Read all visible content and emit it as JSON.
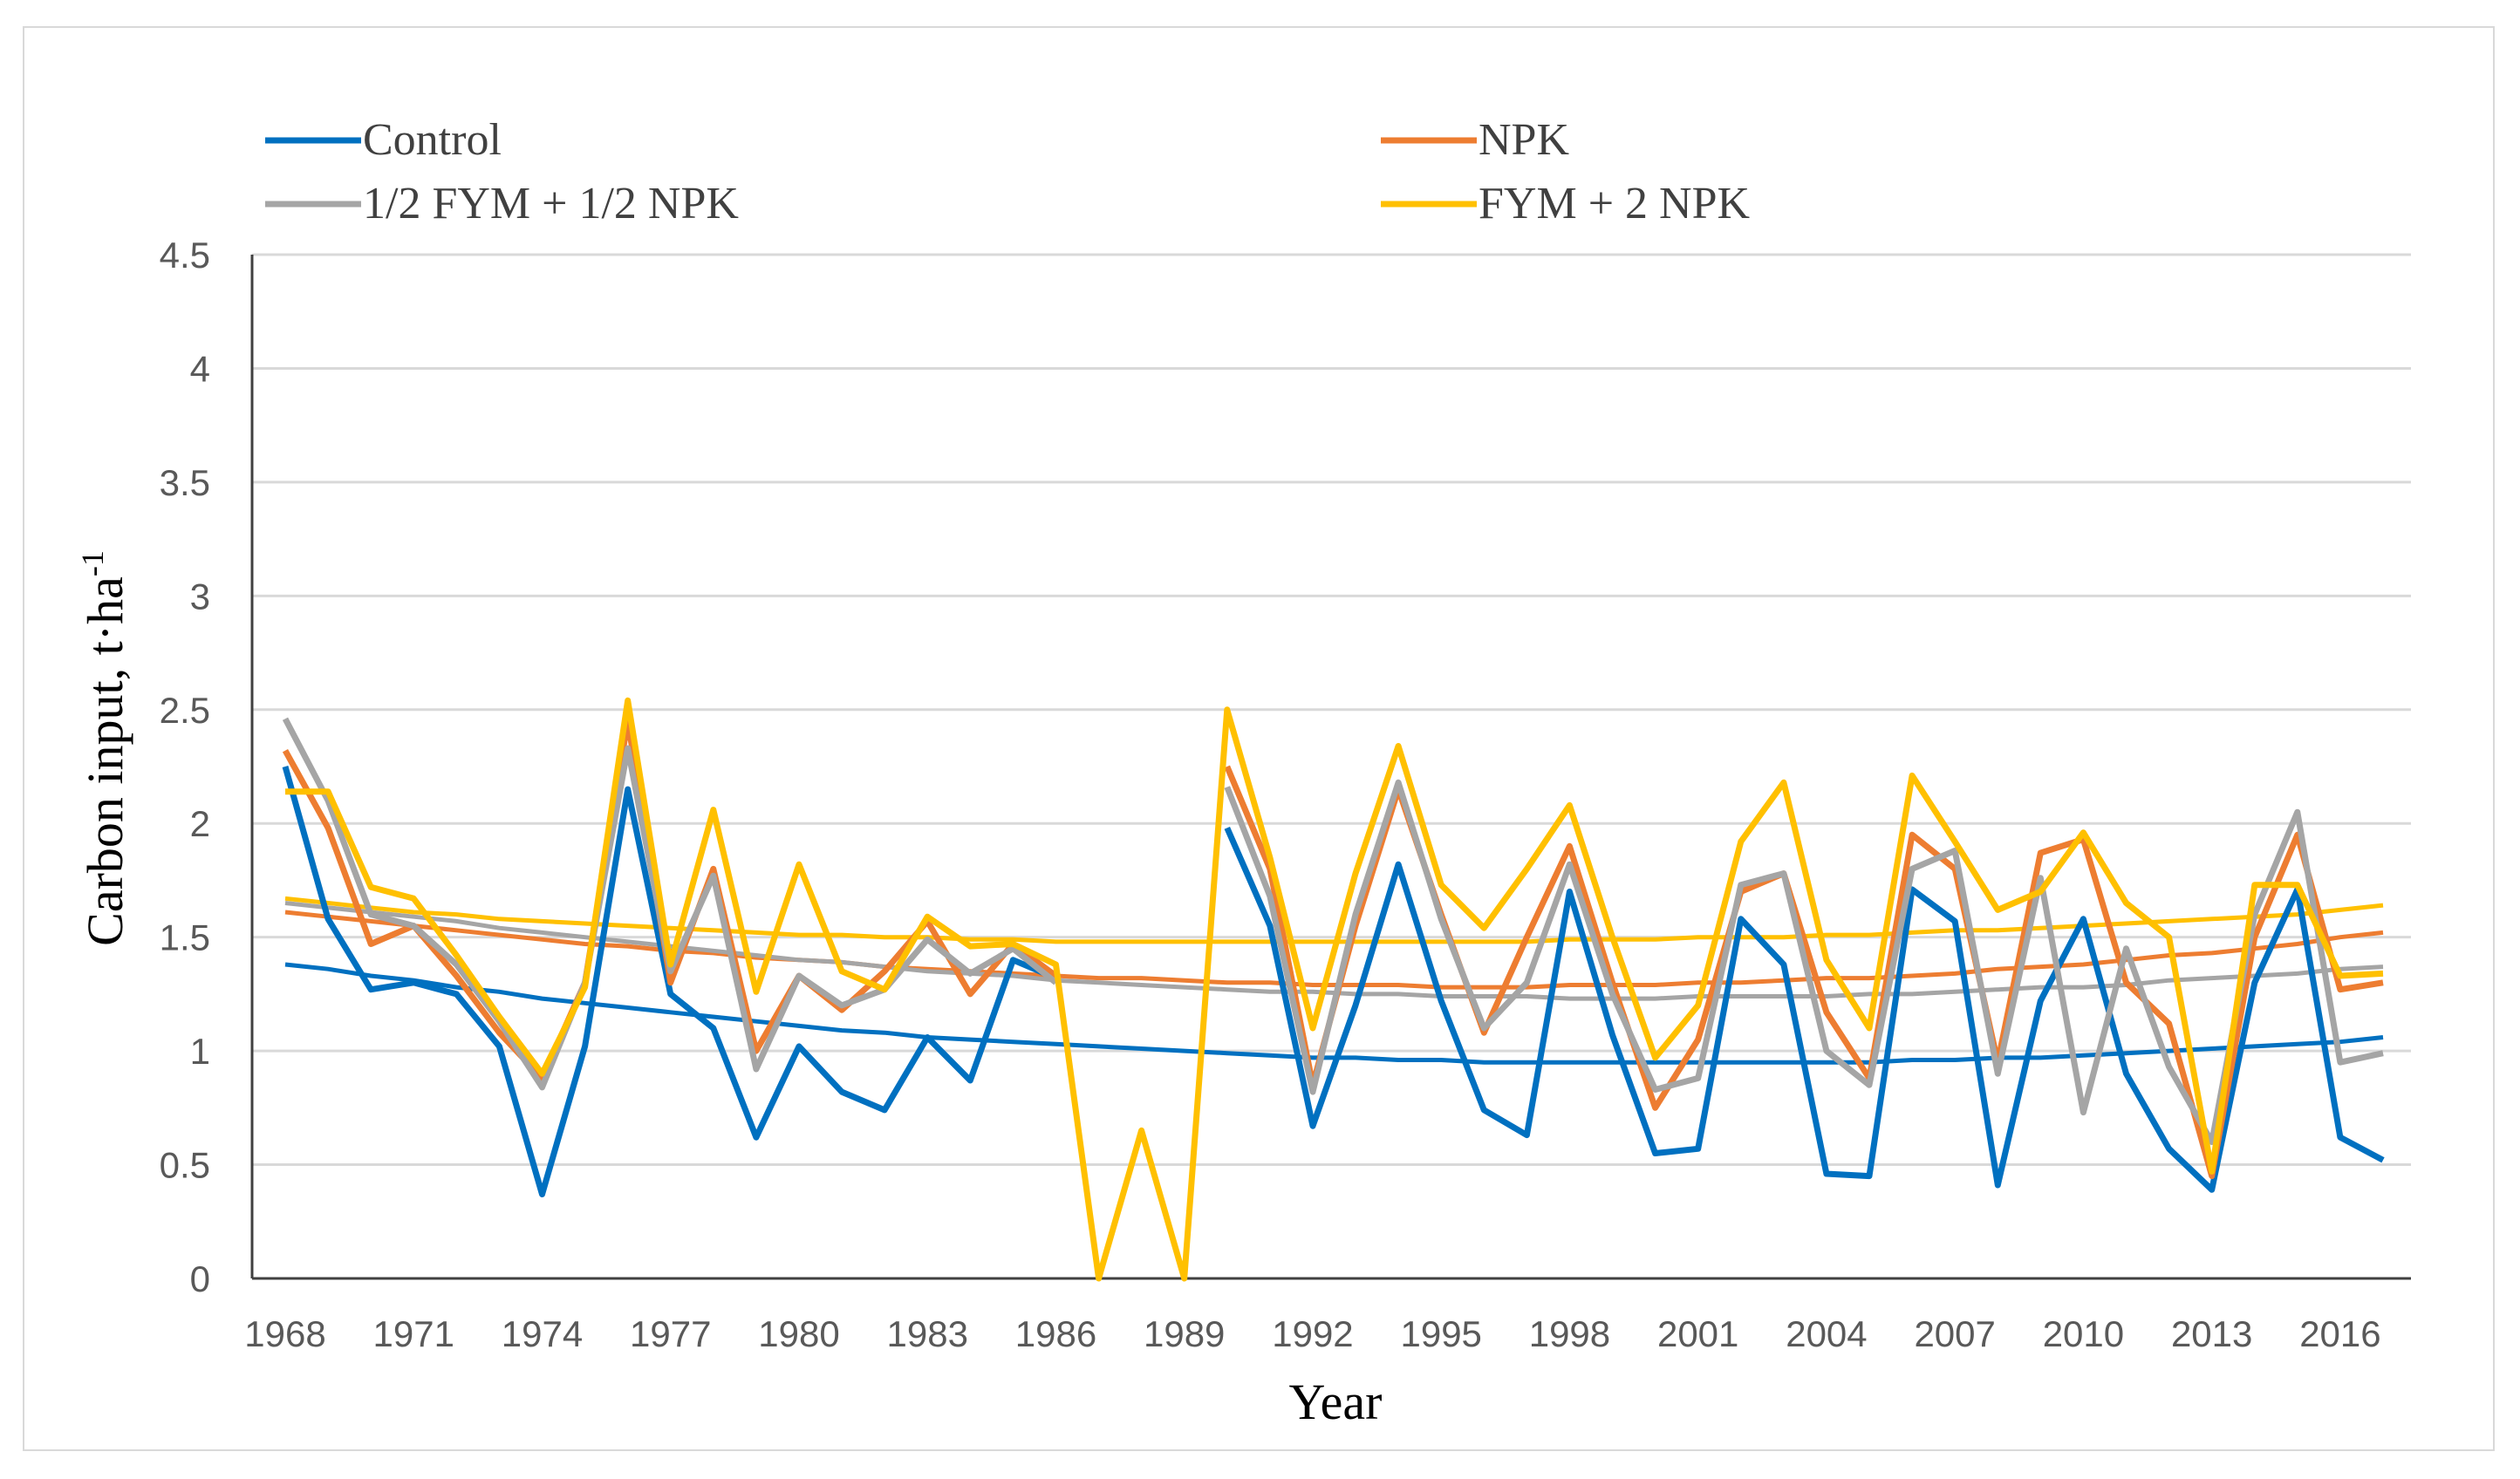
{
  "chart_data": {
    "type": "line",
    "title": "",
    "xlabel": "Year",
    "ylabel": "Carbon input, t·ha",
    "ylabel_superscript": "-1",
    "ylim": [
      0,
      4.5
    ],
    "yticks": [
      "0",
      "0.5",
      "1",
      "1.5",
      "2",
      "2.5",
      "3",
      "3.5",
      "4",
      "4.5"
    ],
    "xlim": [
      1968,
      2017
    ],
    "xticks": [
      "1968",
      "1971",
      "1974",
      "1977",
      "1980",
      "1983",
      "1986",
      "1989",
      "1992",
      "1995",
      "1998",
      "2001",
      "2004",
      "2007",
      "2010",
      "2013",
      "2016"
    ],
    "grid": true,
    "legend_position": "top",
    "x": [
      1968,
      1969,
      1970,
      1971,
      1972,
      1973,
      1974,
      1975,
      1976,
      1977,
      1978,
      1979,
      1980,
      1981,
      1982,
      1983,
      1984,
      1985,
      1986,
      1987,
      1988,
      1989,
      1990,
      1991,
      1992,
      1993,
      1994,
      1995,
      1996,
      1997,
      1998,
      1999,
      2000,
      2001,
      2002,
      2003,
      2004,
      2005,
      2006,
      2007,
      2008,
      2009,
      2010,
      2011,
      2012,
      2013,
      2014,
      2015,
      2016,
      2017
    ],
    "series": [
      {
        "name": "Control",
        "color": "#0070c0",
        "values": [
          2.25,
          1.58,
          1.27,
          1.3,
          1.25,
          1.02,
          0.37,
          1.02,
          2.15,
          1.25,
          1.1,
          0.62,
          1.02,
          0.82,
          0.74,
          1.06,
          0.87,
          1.4,
          1.32,
          null,
          null,
          null,
          1.98,
          1.55,
          0.67,
          1.2,
          1.82,
          1.22,
          0.74,
          0.63,
          1.7,
          1.07,
          0.55,
          0.57,
          1.58,
          1.38,
          0.46,
          0.45,
          1.71,
          1.57,
          0.41,
          1.22,
          1.58,
          0.9,
          0.57,
          0.39,
          1.3,
          1.71,
          0.62,
          0.52
        ],
        "trend": [
          1.38,
          1.36,
          1.33,
          1.31,
          1.28,
          1.26,
          1.23,
          1.21,
          1.19,
          1.17,
          1.15,
          1.13,
          1.11,
          1.09,
          1.08,
          1.06,
          1.05,
          1.04,
          1.03,
          1.02,
          1.01,
          1.0,
          0.99,
          0.98,
          0.97,
          0.97,
          0.96,
          0.96,
          0.95,
          0.95,
          0.95,
          0.95,
          0.95,
          0.95,
          0.95,
          0.95,
          0.95,
          0.95,
          0.96,
          0.96,
          0.97,
          0.97,
          0.98,
          0.99,
          1.0,
          1.01,
          1.02,
          1.03,
          1.04,
          1.06
        ]
      },
      {
        "name": "NPK",
        "color": "#ed7d31",
        "values": [
          2.32,
          1.98,
          1.47,
          1.55,
          1.33,
          1.08,
          0.88,
          1.3,
          2.45,
          1.3,
          1.8,
          1.0,
          1.33,
          1.18,
          1.35,
          1.57,
          1.25,
          1.47,
          1.33,
          null,
          null,
          null,
          2.25,
          1.8,
          0.85,
          1.55,
          2.15,
          1.6,
          1.08,
          1.5,
          1.9,
          1.3,
          0.75,
          1.05,
          1.7,
          1.78,
          1.17,
          0.88,
          1.95,
          1.8,
          0.95,
          1.87,
          1.93,
          1.3,
          1.12,
          0.45,
          1.5,
          1.95,
          1.27,
          1.3
        ],
        "trend": [
          1.61,
          1.59,
          1.57,
          1.55,
          1.53,
          1.51,
          1.49,
          1.47,
          1.46,
          1.44,
          1.43,
          1.41,
          1.4,
          1.39,
          1.37,
          1.36,
          1.35,
          1.34,
          1.33,
          1.32,
          1.32,
          1.31,
          1.3,
          1.3,
          1.29,
          1.29,
          1.29,
          1.28,
          1.28,
          1.28,
          1.29,
          1.29,
          1.29,
          1.3,
          1.3,
          1.31,
          1.32,
          1.32,
          1.33,
          1.34,
          1.36,
          1.37,
          1.38,
          1.4,
          1.42,
          1.43,
          1.45,
          1.47,
          1.5,
          1.52
        ]
      },
      {
        "name": "1/2 FYM + 1/2 NPK",
        "color": "#a5a5a5",
        "values": [
          2.46,
          2.1,
          1.6,
          1.55,
          1.38,
          1.13,
          0.84,
          1.3,
          2.33,
          1.35,
          1.77,
          0.92,
          1.33,
          1.2,
          1.27,
          1.49,
          1.34,
          1.45,
          1.3,
          null,
          null,
          null,
          2.16,
          1.68,
          0.82,
          1.6,
          2.18,
          1.58,
          1.1,
          1.3,
          1.82,
          1.25,
          0.83,
          0.88,
          1.73,
          1.78,
          1.0,
          0.85,
          1.8,
          1.88,
          0.9,
          1.76,
          0.73,
          1.45,
          0.93,
          0.6,
          1.6,
          2.05,
          0.95,
          0.99
        ],
        "trend": [
          1.65,
          1.63,
          1.61,
          1.59,
          1.57,
          1.54,
          1.52,
          1.5,
          1.48,
          1.46,
          1.44,
          1.42,
          1.4,
          1.39,
          1.37,
          1.35,
          1.34,
          1.33,
          1.31,
          1.3,
          1.29,
          1.28,
          1.27,
          1.26,
          1.26,
          1.25,
          1.25,
          1.24,
          1.24,
          1.24,
          1.23,
          1.23,
          1.23,
          1.24,
          1.24,
          1.24,
          1.24,
          1.25,
          1.25,
          1.26,
          1.27,
          1.28,
          1.28,
          1.29,
          1.31,
          1.32,
          1.33,
          1.34,
          1.36,
          1.37
        ]
      },
      {
        "name": "FYM + 2 NPK",
        "color": "#ffc000",
        "values": [
          2.14,
          2.14,
          1.72,
          1.67,
          1.42,
          1.15,
          0.9,
          1.28,
          2.54,
          1.38,
          2.06,
          1.26,
          1.82,
          1.35,
          1.27,
          1.59,
          1.46,
          1.47,
          1.38,
          0.0,
          0.65,
          0.0,
          2.5,
          1.85,
          1.1,
          1.78,
          2.34,
          1.73,
          1.54,
          1.8,
          2.08,
          1.5,
          0.97,
          1.2,
          1.92,
          2.18,
          1.4,
          1.1,
          2.21,
          1.92,
          1.62,
          1.7,
          1.96,
          1.65,
          1.5,
          0.47,
          1.73,
          1.73,
          1.33,
          1.34
        ],
        "trend": [
          1.67,
          1.65,
          1.63,
          1.61,
          1.6,
          1.58,
          1.57,
          1.56,
          1.55,
          1.54,
          1.53,
          1.52,
          1.51,
          1.51,
          1.5,
          1.5,
          1.49,
          1.49,
          1.48,
          1.48,
          1.48,
          1.48,
          1.48,
          1.48,
          1.48,
          1.48,
          1.48,
          1.48,
          1.48,
          1.48,
          1.49,
          1.49,
          1.49,
          1.5,
          1.5,
          1.5,
          1.51,
          1.51,
          1.52,
          1.53,
          1.53,
          1.54,
          1.55,
          1.56,
          1.57,
          1.58,
          1.59,
          1.6,
          1.62,
          1.64
        ]
      }
    ]
  }
}
